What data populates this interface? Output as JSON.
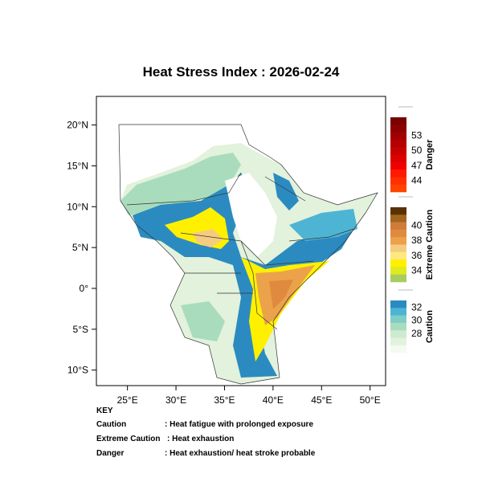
{
  "title": "Heat Stress Index : 2026-02-24",
  "map": {
    "lon_range": [
      21.8,
      51.6
    ],
    "lat_range": [
      -11.9,
      23.5
    ],
    "x_ticks": [
      {
        "v": 25,
        "label": "25°E"
      },
      {
        "v": 30,
        "label": "30°E"
      },
      {
        "v": 35,
        "label": "35°E"
      },
      {
        "v": 40,
        "label": "40°E"
      },
      {
        "v": 45,
        "label": "45°E"
      },
      {
        "v": 50,
        "label": "50°E"
      }
    ],
    "y_ticks": [
      {
        "v": 20,
        "label": "20°N"
      },
      {
        "v": 15,
        "label": "15°N"
      },
      {
        "v": 10,
        "label": "10°N"
      },
      {
        "v": 5,
        "label": "5°N"
      },
      {
        "v": 0,
        "label": "0°"
      },
      {
        "v": -5,
        "label": "5°S"
      },
      {
        "v": -10,
        "label": "10°S"
      }
    ]
  },
  "legend": [
    {
      "name": "Danger",
      "colors": [
        "#7a0000",
        "#8c0000",
        "#a00000",
        "#b40000",
        "#c80000",
        "#dc0000",
        "#f00000",
        "#ff1a00",
        "#ff2f00",
        "#ff4400"
      ],
      "labels": [
        "53",
        "50",
        "47",
        "44"
      ]
    },
    {
      "name": "Extreme Caution",
      "colors": [
        "#5a3200",
        "#a0661e",
        "#d07a3c",
        "#e08a40",
        "#eca24a",
        "#f4cc80",
        "#ffe880",
        "#fff000",
        "#e0ea20",
        "#a8cc60"
      ],
      "labels": [
        "40",
        "38",
        "36",
        "34"
      ]
    },
    {
      "name": "Caution",
      "colors": [
        "#2b8bc0",
        "#4eb4d4",
        "#7ecdc6",
        "#a8dcbc",
        "#cdebcf",
        "#e2f2dc",
        "#f4faf0"
      ],
      "labels": [
        "32",
        "30",
        "28"
      ]
    }
  ],
  "key": {
    "heading": "KEY",
    "rows": [
      {
        "term": "Caution",
        "desc": ": Heat fatigue with prolonged exposure"
      },
      {
        "term": "Extreme Caution",
        "desc": ": Heat exhaustion"
      },
      {
        "term": "Danger",
        "desc": ": Heat exhaustion/ heat stroke probable"
      }
    ]
  }
}
